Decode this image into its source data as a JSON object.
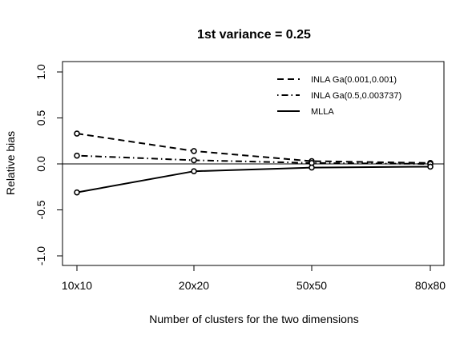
{
  "chart_data": {
    "type": "line",
    "title": "1st variance = 0.25",
    "xlabel": "Number of clusters for the two dimensions",
    "ylabel": "Relative bias",
    "categories": [
      "10x10",
      "20x20",
      "50x50",
      "80x80"
    ],
    "ylim": [
      -1.0,
      1.0
    ],
    "yticks": [
      -1.0,
      -0.5,
      0.0,
      0.5,
      1.0
    ],
    "ytick_labels": [
      "-1.0",
      "-0.5",
      "0.0",
      "0.5",
      "1.0"
    ],
    "reference_line": 0.0,
    "grid": false,
    "legend_position": "top-right",
    "series": [
      {
        "name": "INLA Ga(0.001,0.001)",
        "linestyle": "dashed",
        "marker": "circle",
        "values": [
          0.33,
          0.14,
          0.03,
          0.01
        ]
      },
      {
        "name": "INLA Ga(0.5,0.003737)",
        "linestyle": "dotdash",
        "marker": "circle",
        "values": [
          0.09,
          0.04,
          0.01,
          0.0
        ]
      },
      {
        "name": "MLLA",
        "linestyle": "solid",
        "marker": "circle",
        "values": [
          -0.31,
          -0.08,
          -0.04,
          -0.03
        ]
      }
    ],
    "color": "#000000"
  }
}
